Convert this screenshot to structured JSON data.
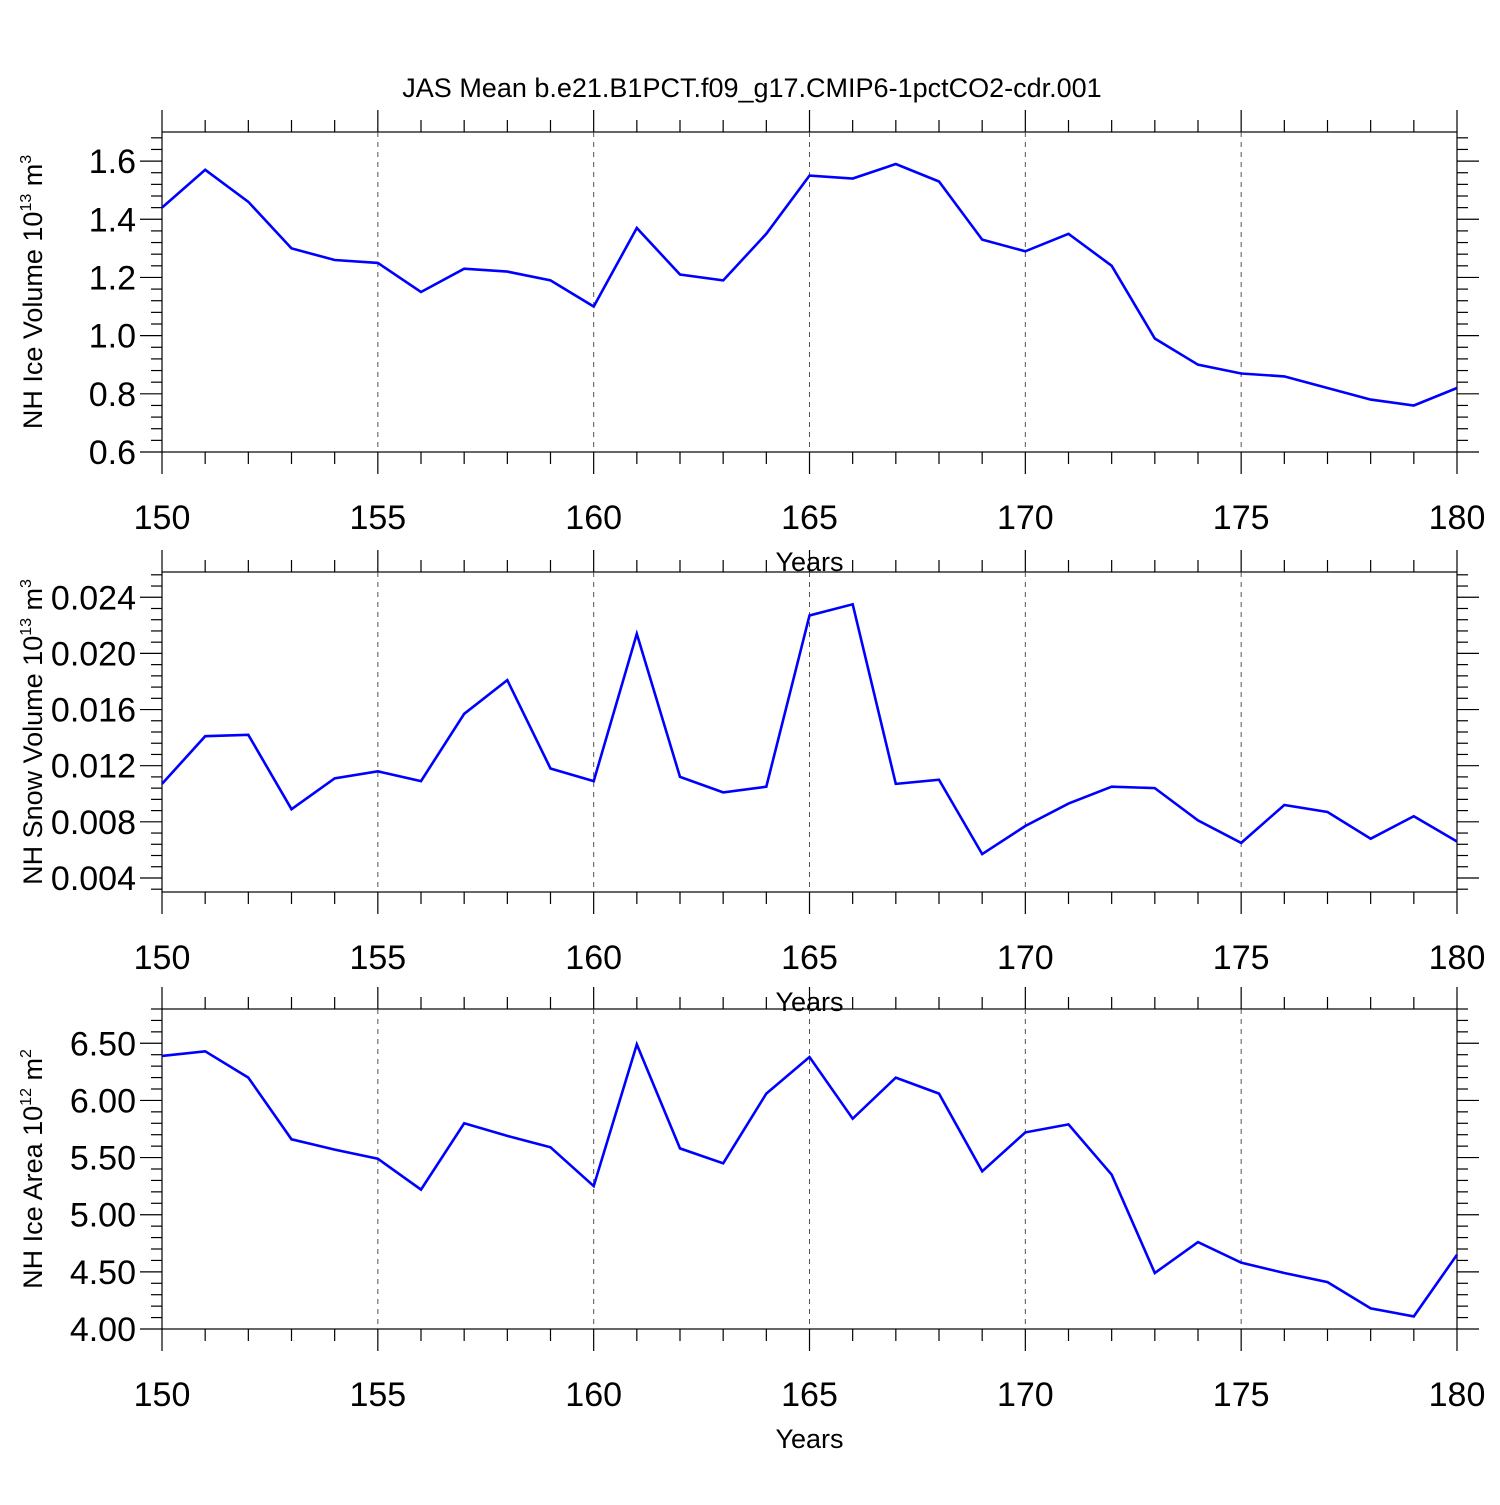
{
  "title": "JAS Mean b.e21.B1PCT.f09_g17.CMIP6-1pctCO2-cdr.001",
  "colors": {
    "line": "#0000ff",
    "axis": "#000000",
    "grid": "#555555",
    "background": "#ffffff"
  },
  "chart_data": [
    {
      "type": "line",
      "ylabel": "NH Ice Volume 10",
      "ylabel_exp": "13",
      "ylabel_unit": " m",
      "ylabel_unit_exp": "3",
      "xlabel": "Years",
      "xlim": [
        150,
        180
      ],
      "ylim": [
        0.6,
        1.7
      ],
      "yticks": [
        0.6,
        0.8,
        1.0,
        1.2,
        1.4,
        1.6
      ],
      "ytick_labels": [
        "0.6",
        "0.8",
        "1.0",
        "1.2",
        "1.4",
        "1.6"
      ],
      "xticks": [
        150,
        155,
        160,
        165,
        170,
        175,
        180
      ],
      "xtick_labels": [
        "150",
        "155",
        "160",
        "165",
        "170",
        "175",
        "180"
      ],
      "grid": "vertical dashed at major x ticks",
      "series": [
        {
          "x": [
            150,
            151,
            152,
            153,
            154,
            155,
            156,
            157,
            158,
            159,
            160,
            161,
            162,
            163,
            164,
            165,
            166,
            167,
            168,
            169,
            170,
            171,
            172,
            173,
            174,
            175,
            176,
            177,
            178,
            179,
            180
          ],
          "values": [
            1.44,
            1.57,
            1.46,
            1.3,
            1.26,
            1.25,
            1.15,
            1.23,
            1.22,
            1.19,
            1.1,
            1.37,
            1.21,
            1.19,
            1.35,
            1.55,
            1.54,
            1.59,
            1.53,
            1.33,
            1.29,
            1.35,
            1.24,
            0.99,
            0.9,
            0.87,
            0.86,
            0.82,
            0.78,
            0.76,
            0.82
          ]
        }
      ]
    },
    {
      "type": "line",
      "ylabel": "NH Snow Volume 10",
      "ylabel_exp": "13",
      "ylabel_unit": " m",
      "ylabel_unit_exp": "3",
      "xlabel": "Years",
      "xlim": [
        150,
        180
      ],
      "ylim": [
        0.003,
        0.0258
      ],
      "yticks": [
        0.004,
        0.008,
        0.012,
        0.016,
        0.02,
        0.024
      ],
      "ytick_labels": [
        "0.004",
        "0.008",
        "0.012",
        "0.016",
        "0.020",
        "0.024"
      ],
      "xticks": [
        150,
        155,
        160,
        165,
        170,
        175,
        180
      ],
      "xtick_labels": [
        "150",
        "155",
        "160",
        "165",
        "170",
        "175",
        "180"
      ],
      "grid": "vertical dashed at major x ticks",
      "series": [
        {
          "x": [
            150,
            151,
            152,
            153,
            154,
            155,
            156,
            157,
            158,
            159,
            160,
            161,
            162,
            163,
            164,
            165,
            166,
            167,
            168,
            169,
            170,
            171,
            172,
            173,
            174,
            175,
            176,
            177,
            178,
            179,
            180
          ],
          "values": [
            0.0107,
            0.0141,
            0.0142,
            0.0089,
            0.0111,
            0.0116,
            0.0109,
            0.0157,
            0.0181,
            0.0118,
            0.0109,
            0.0214,
            0.0112,
            0.0101,
            0.0105,
            0.0227,
            0.0235,
            0.0107,
            0.011,
            0.0057,
            0.0077,
            0.0093,
            0.0105,
            0.0104,
            0.0081,
            0.0065,
            0.0092,
            0.0087,
            0.0068,
            0.0084,
            0.0066
          ]
        }
      ]
    },
    {
      "type": "line",
      "ylabel": "NH Ice Area 10",
      "ylabel_exp": "12",
      "ylabel_unit": " m",
      "ylabel_unit_exp": "2",
      "xlabel": "Years",
      "xlim": [
        150,
        180
      ],
      "ylim": [
        4.0,
        6.8
      ],
      "yticks": [
        4.0,
        4.5,
        5.0,
        5.5,
        6.0,
        6.5
      ],
      "ytick_labels": [
        "4.00",
        "4.50",
        "5.00",
        "5.50",
        "6.00",
        "6.50"
      ],
      "xticks": [
        150,
        155,
        160,
        165,
        170,
        175,
        180
      ],
      "xtick_labels": [
        "150",
        "155",
        "160",
        "165",
        "170",
        "175",
        "180"
      ],
      "grid": "vertical dashed at major x ticks",
      "series": [
        {
          "x": [
            150,
            151,
            152,
            153,
            154,
            155,
            156,
            157,
            158,
            159,
            160,
            161,
            162,
            163,
            164,
            165,
            166,
            167,
            168,
            169,
            170,
            171,
            172,
            173,
            174,
            175,
            176,
            177,
            178,
            179,
            180
          ],
          "values": [
            6.39,
            6.43,
            6.2,
            5.66,
            5.57,
            5.49,
            5.22,
            5.8,
            5.69,
            5.59,
            5.25,
            6.49,
            5.58,
            5.45,
            6.06,
            6.38,
            5.84,
            6.2,
            6.06,
            5.38,
            5.72,
            5.79,
            5.35,
            4.49,
            4.76,
            4.58,
            4.49,
            4.41,
            4.18,
            4.11,
            4.65
          ]
        }
      ]
    }
  ]
}
